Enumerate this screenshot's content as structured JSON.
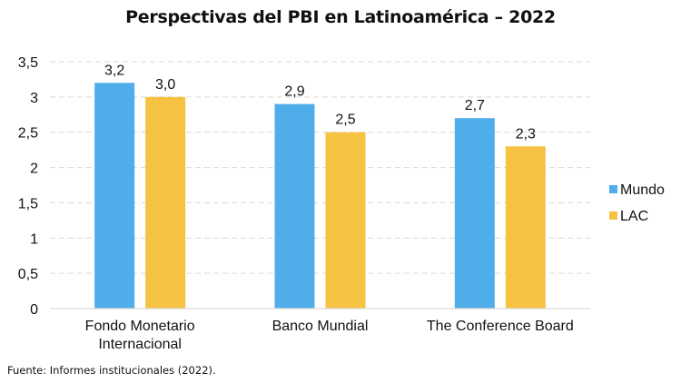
{
  "chart_data": {
    "type": "bar",
    "title": "Perspectivas del PBI en Latinoamérica – 2022",
    "xlabel": "",
    "ylabel": "",
    "categories": [
      [
        "Fondo Monetario",
        "Internacional"
      ],
      [
        "Banco Mundial"
      ],
      [
        "The Conference Board"
      ]
    ],
    "series": [
      {
        "name": "Mundo",
        "color": "#4FADEA",
        "values": [
          3.2,
          2.9,
          2.7
        ],
        "labels": [
          "3,2",
          "2,9",
          "2,7"
        ]
      },
      {
        "name": "LAC",
        "color": "#F5C242",
        "values": [
          3.0,
          2.5,
          2.3
        ],
        "labels": [
          "3,0",
          "2,5",
          "2,3"
        ]
      }
    ],
    "ylim": [
      0,
      3.5
    ],
    "yticks": [
      0,
      0.5,
      1,
      1.5,
      2,
      2.5,
      3,
      3.5
    ],
    "ytick_labels": [
      "0",
      "0,5",
      "1",
      "1,5",
      "2",
      "2,5",
      "3",
      "3,5"
    ],
    "grid": true,
    "legend_position": "right"
  },
  "source": "Fuente: Informes institucionales (2022)."
}
